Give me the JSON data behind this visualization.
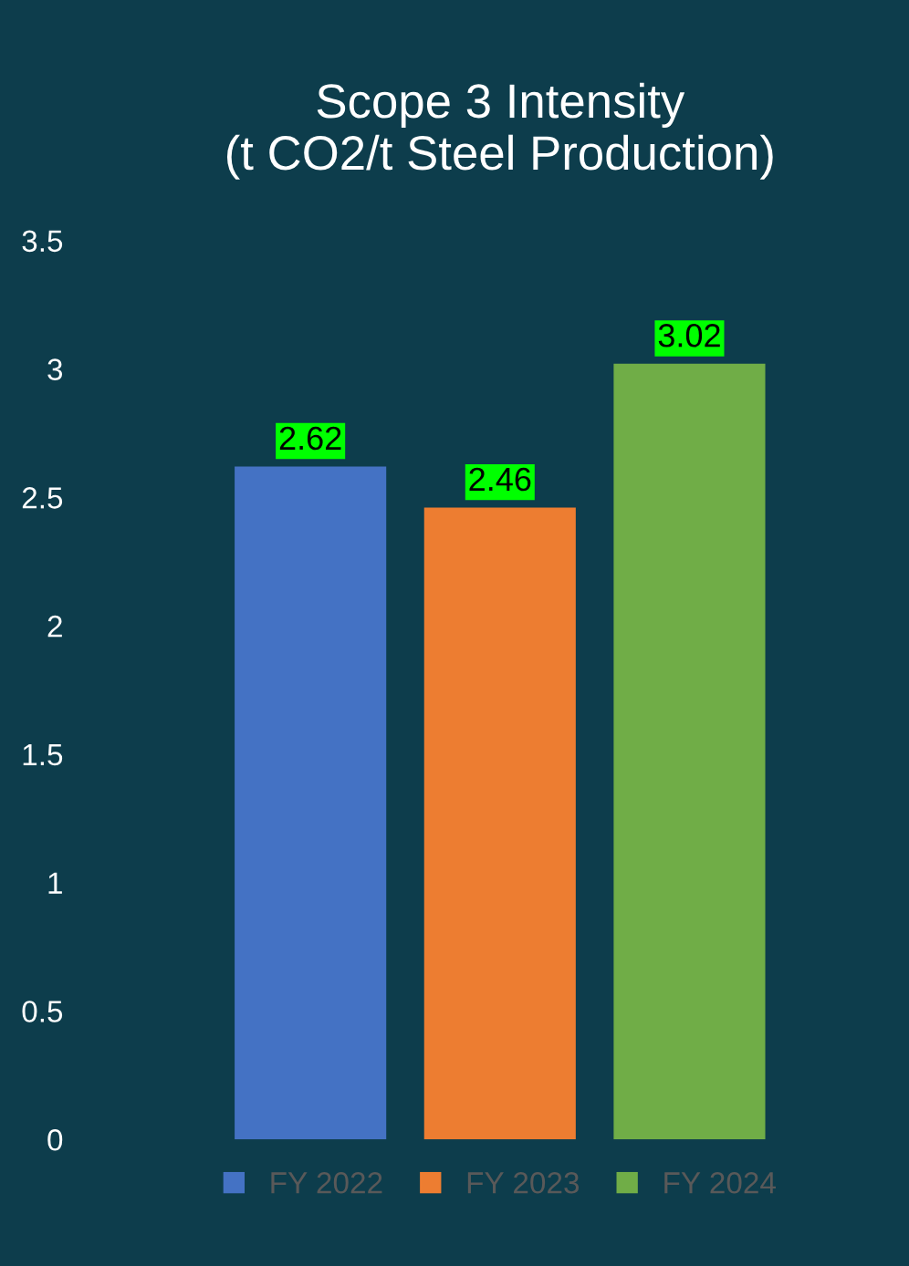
{
  "chart_data": {
    "type": "bar",
    "title": "Scope 3 Intensity\n(t CO2/t Steel Production)",
    "categories": [
      null
    ],
    "series": [
      {
        "name": "FY 2022",
        "color": "#4472c4",
        "values": [
          2.62
        ]
      },
      {
        "name": "FY 2023",
        "color": "#ed7d31",
        "values": [
          2.46
        ]
      },
      {
        "name": "FY 2024",
        "color": "#70ad47",
        "values": [
          3.02
        ]
      }
    ],
    "ylim": [
      0,
      3.5
    ],
    "yticks": [
      0,
      0.5,
      1,
      1.5,
      2,
      2.5,
      3,
      3.5
    ],
    "data_labels": true,
    "grid": false,
    "legend": "bottom"
  }
}
